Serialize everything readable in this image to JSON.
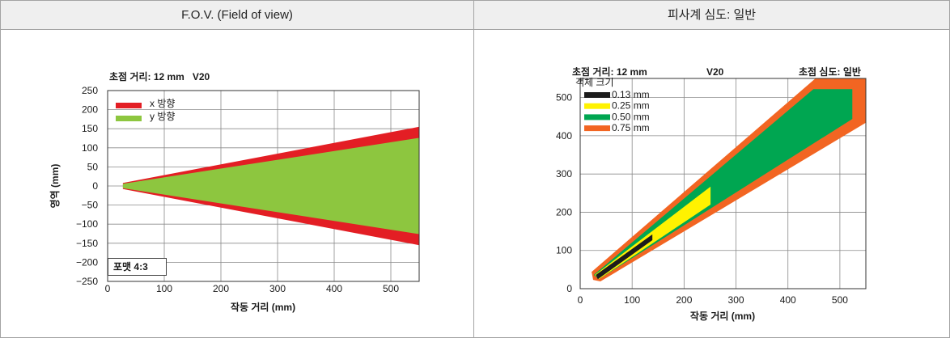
{
  "headers": {
    "left": "F.O.V. (Field of view)",
    "right": "피사계 심도: 일반"
  },
  "chart_data": [
    {
      "type": "area",
      "title": "초점 거리: 12 mm   V20",
      "xlabel": "작동 거리 (mm)",
      "ylabel": "영역 (mm)",
      "xlim": [
        0,
        550
      ],
      "ylim": [
        -250,
        250
      ],
      "xticks": [
        "0",
        "100",
        "200",
        "300",
        "400",
        "500"
      ],
      "yticks": [
        "250",
        "200",
        "150",
        "100",
        "50",
        "0",
        "−50",
        "−100",
        "−150",
        "−200",
        "−250"
      ],
      "grid": true,
      "legend": "top-left",
      "annotation": "포맷 4:3",
      "series": [
        {
          "name": "x 방향",
          "color": "#e31e24",
          "points": [
            [
              27,
              8
            ],
            [
              550,
              155
            ],
            [
              550,
              -155
            ],
            [
              27,
              -8
            ]
          ]
        },
        {
          "name": "y 방향",
          "color": "#8dc63f",
          "points": [
            [
              27,
              6
            ],
            [
              550,
              126
            ],
            [
              550,
              -126
            ],
            [
              27,
              -6
            ]
          ]
        }
      ]
    },
    {
      "type": "area",
      "title": "초점 거리: 12 mm",
      "title_center": "V20",
      "title_right": "초점 심도: 일반",
      "xlabel": "작동 거리 (mm)",
      "xlim": [
        0,
        550
      ],
      "ylim": [
        0,
        550
      ],
      "xticks": [
        "0",
        "100",
        "200",
        "300",
        "400",
        "500"
      ],
      "yticks": [
        "0",
        "100",
        "200",
        "300",
        "400",
        "500"
      ],
      "grid": true,
      "legend": "top-left",
      "legend_title": "객체 크기",
      "series": [
        {
          "name": "0.13 mm",
          "color": "#1c1c1c",
          "points": [
            [
              30,
              36
            ],
            [
              139,
              142
            ],
            [
              139,
              127
            ],
            [
              34,
              25
            ]
          ]
        },
        {
          "name": "0.25 mm",
          "color": "#fff200",
          "points": [
            [
              28,
              36
            ],
            [
              251,
              267
            ],
            [
              251,
              220
            ],
            [
              36,
              25
            ]
          ]
        },
        {
          "name": "0.50 mm",
          "color": "#00a651",
          "points": [
            [
              26,
              36
            ],
            [
              449,
              522
            ],
            [
              524,
              522
            ],
            [
              524,
              444
            ],
            [
              36,
              25
            ]
          ]
        },
        {
          "name": "0.75 mm",
          "color": "#f26522",
          "points": [
            [
              22,
              44
            ],
            [
              453,
              550
            ],
            [
              550,
              550
            ],
            [
              550,
              434
            ],
            [
              39,
              19
            ],
            [
              25,
              23
            ]
          ]
        }
      ]
    }
  ]
}
